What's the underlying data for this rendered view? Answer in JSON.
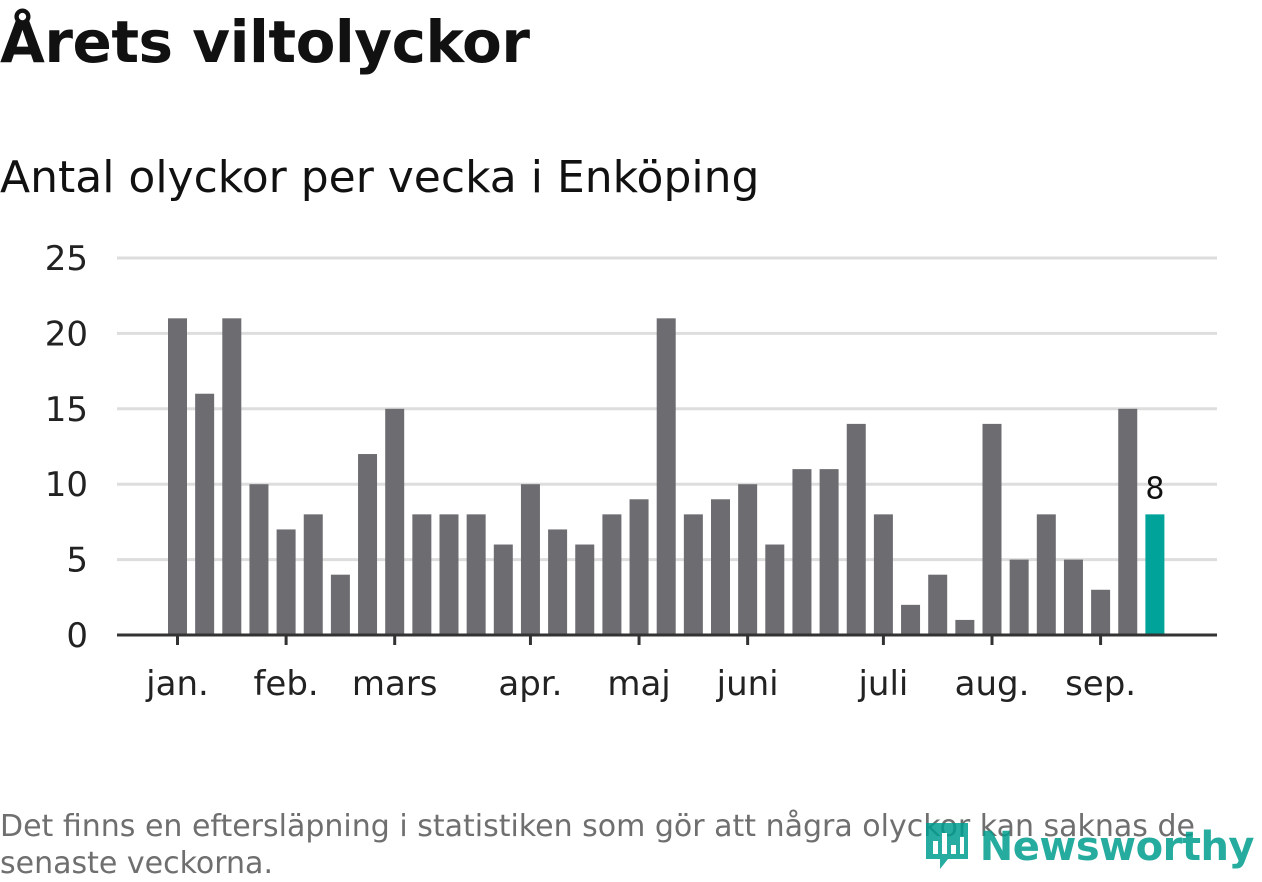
{
  "title": "Årets viltolyckor",
  "subtitle": "Antal olyckor per vecka i Enköping",
  "footnote": "Det finns en eftersläpning i statistiken som gör att några olyckor kan saknas de senaste veckorna.",
  "logo": {
    "text": "Newsworthy",
    "icon": "newsworthy-bar-icon"
  },
  "colors": {
    "bar": "#6d6c71",
    "highlight": "#00a39a",
    "grid": "#dddddd",
    "axis": "#333333"
  },
  "chart_data": {
    "type": "bar",
    "ylim": [
      0,
      25
    ],
    "yticks": [
      0,
      5,
      10,
      15,
      20,
      25
    ],
    "grid": true,
    "values": [
      21,
      16,
      21,
      10,
      7,
      8,
      4,
      12,
      15,
      8,
      8,
      8,
      6,
      10,
      7,
      6,
      8,
      9,
      21,
      8,
      9,
      10,
      6,
      11,
      11,
      14,
      8,
      2,
      4,
      1,
      14,
      5,
      8,
      5,
      3,
      15,
      8
    ],
    "highlight_index": 36,
    "highlight_label": "8",
    "month_labels": [
      {
        "label": "jan.",
        "bar": 0
      },
      {
        "label": "feb.",
        "bar": 4
      },
      {
        "label": "mars",
        "bar": 8
      },
      {
        "label": "apr.",
        "bar": 13
      },
      {
        "label": "maj",
        "bar": 17
      },
      {
        "label": "juni",
        "bar": 21
      },
      {
        "label": "juli",
        "bar": 26
      },
      {
        "label": "aug.",
        "bar": 30
      },
      {
        "label": "sep.",
        "bar": 34
      }
    ]
  }
}
